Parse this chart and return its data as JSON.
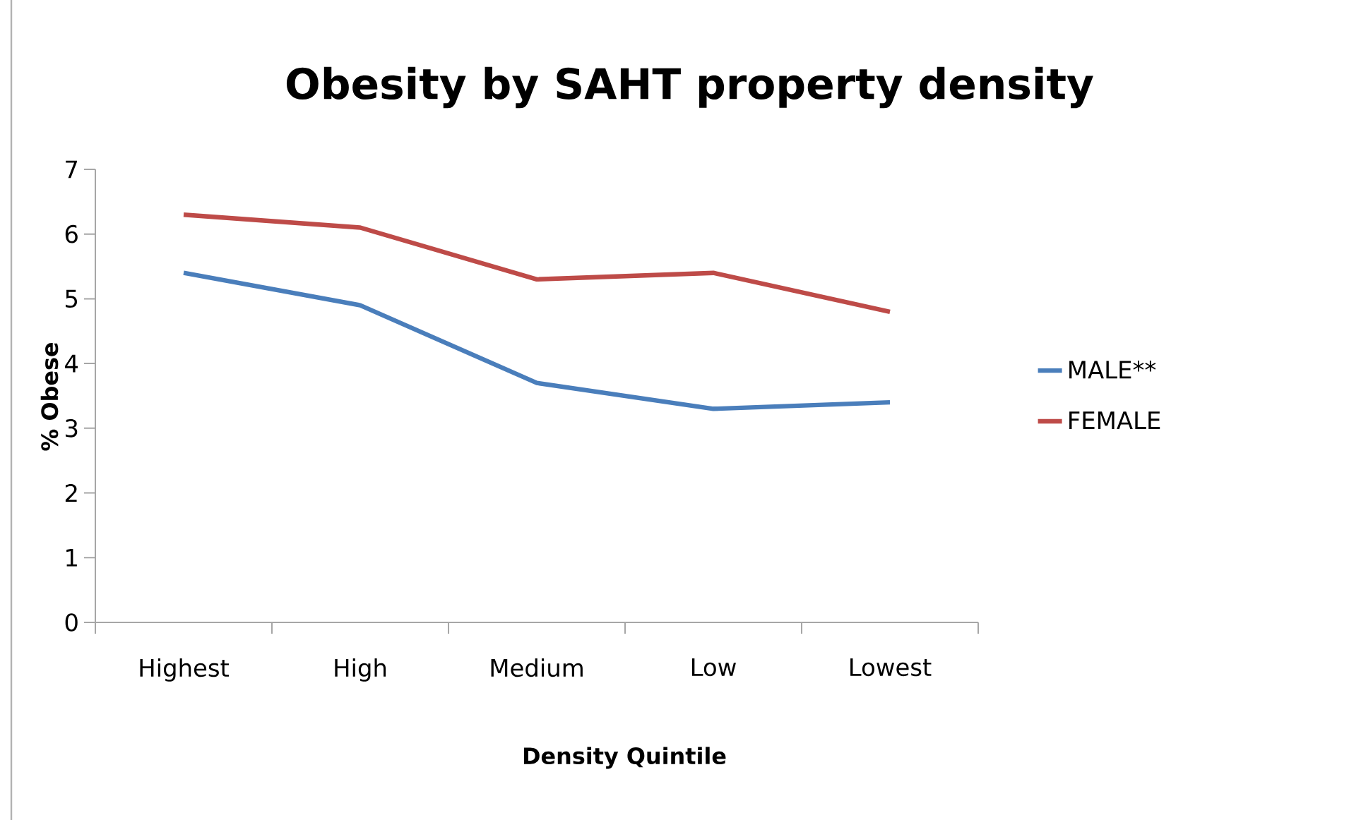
{
  "chart_data": {
    "type": "line",
    "title": "Obesity by SAHT property density",
    "xlabel": "Density Quintile",
    "ylabel": "% Obese",
    "categories": [
      "Highest",
      "High",
      "Medium",
      "Low",
      "Lowest"
    ],
    "series": [
      {
        "name": "MALE**",
        "color": "#4a7ebb",
        "values": [
          5.4,
          4.9,
          3.7,
          3.3,
          3.4
        ]
      },
      {
        "name": "FEMALE",
        "color": "#be4b48",
        "values": [
          6.3,
          6.1,
          5.3,
          5.4,
          4.8
        ]
      }
    ],
    "ylim": [
      0,
      7
    ],
    "yticks": [
      0,
      1,
      2,
      3,
      4,
      5,
      6,
      7
    ],
    "legend": "right",
    "marker": "none"
  }
}
